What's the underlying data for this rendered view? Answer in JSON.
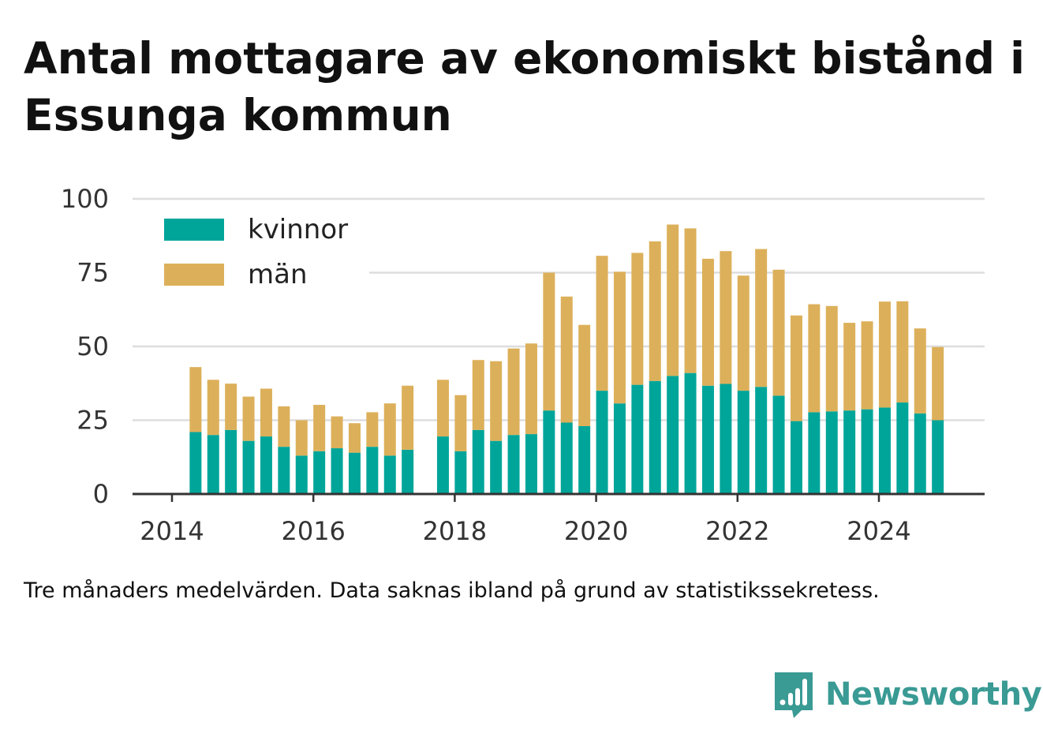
{
  "title": "Antal mottagare av ekonomiskt bistånd i Essunga kommun",
  "footnote": "Tre månaders medelvärden. Data saknas ibland på grund av statistikssekretess.",
  "brand": {
    "name": "Newsworthy",
    "icon": "newsworthy-logo-icon",
    "color": "#3a9a94"
  },
  "colors": {
    "kvinnor": "#00a59a",
    "man": "#dcb05a",
    "grid": "#dddddd",
    "axis": "#333333",
    "text": "#333333"
  },
  "chart_data": {
    "type": "bar",
    "stacked": true,
    "grid": true,
    "legend_position": "top-left",
    "ylim": [
      0,
      100
    ],
    "yticks": [
      0,
      25,
      50,
      75,
      100
    ],
    "xticks": [
      "2014",
      "2016",
      "2018",
      "2020",
      "2022",
      "2024"
    ],
    "x": [
      "2014-05",
      "2014-08",
      "2014-11",
      "2015-02",
      "2015-05",
      "2015-08",
      "2015-11",
      "2016-02",
      "2016-05",
      "2016-08",
      "2016-11",
      "2017-02",
      "2017-05",
      "2017-11",
      "2018-02",
      "2018-05",
      "2018-08",
      "2018-11",
      "2019-02",
      "2019-05",
      "2019-08",
      "2019-11",
      "2020-02",
      "2020-05",
      "2020-08",
      "2020-11",
      "2021-02",
      "2021-05",
      "2021-08",
      "2021-11",
      "2022-02",
      "2022-05",
      "2022-08",
      "2022-11",
      "2023-02",
      "2023-05",
      "2023-08",
      "2023-11",
      "2024-02",
      "2024-05",
      "2024-08",
      "2024-11"
    ],
    "series": [
      {
        "name": "kvinnor",
        "values": [
          21,
          20,
          21.7,
          18,
          19.5,
          16,
          13,
          14.5,
          15.5,
          14,
          16,
          13,
          15,
          19.5,
          14.5,
          21.7,
          18,
          20,
          20.3,
          28.3,
          24.2,
          23,
          35,
          30.7,
          37,
          38.3,
          40,
          41,
          36.7,
          37.3,
          35,
          36.3,
          33.3,
          24.7,
          27.7,
          28,
          28.3,
          28.7,
          29.3,
          31,
          27.3,
          25
        ]
      },
      {
        "name": "män",
        "values": [
          22,
          18.7,
          15.7,
          15,
          16.2,
          13.7,
          12,
          15.7,
          10.8,
          10,
          11.7,
          17.7,
          21.7,
          19.2,
          19,
          23.7,
          27,
          29.3,
          30.7,
          46.7,
          42.7,
          34.3,
          45.7,
          44.6,
          44.7,
          47.3,
          51.3,
          49,
          43,
          45,
          39,
          46.7,
          42.7,
          35.8,
          36.6,
          35.7,
          29.7,
          29.8,
          35.9,
          34.3,
          28.8,
          24.8
        ]
      }
    ]
  }
}
